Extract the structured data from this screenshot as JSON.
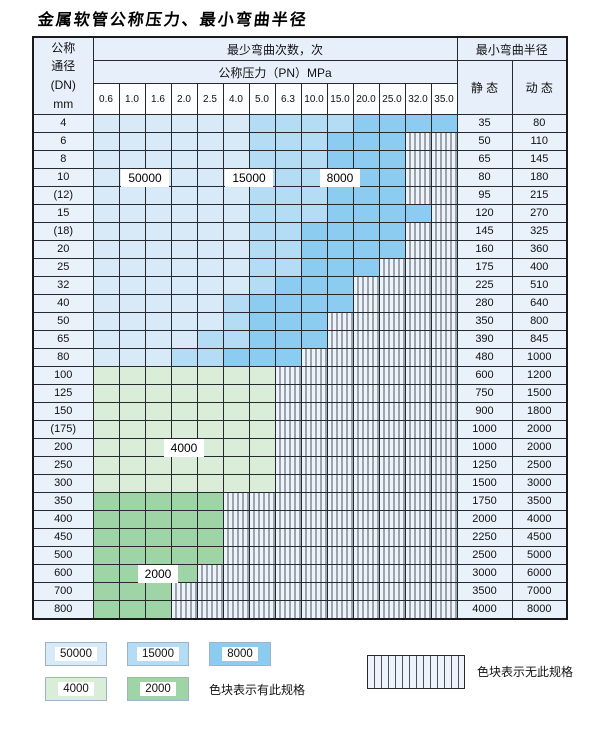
{
  "title": "金属软管公称压力、最小弯曲半径",
  "header": {
    "dn_lines": [
      "公称",
      "通径",
      "(DN)",
      "mm"
    ],
    "bend_times": "最少弯曲次数，次",
    "pressure_group": "公称压力（PN）MPa",
    "min_radius": "最小弯曲半径",
    "static": "静 态",
    "dynamic": "动 态",
    "pressure_columns": [
      "0.6",
      "1.0",
      "1.6",
      "2.0",
      "2.5",
      "4.0",
      "5.0",
      "6.3",
      "10.0",
      "15.0",
      "20.0",
      "25.0",
      "32.0",
      "35.0"
    ]
  },
  "colors": {
    "L": "#d8eaf8",
    "M": "#b4dcf4",
    "D": "#8cccf0",
    "g": "#d9edd8",
    "G": "#9ed4a6",
    "hatch_bg": "#eef3fb",
    "hatch_line": "#4a5560",
    "label_bg": "#e9f1fb",
    "grid": "#26292e"
  },
  "rows": [
    {
      "dn": "4",
      "cells": "LLLLLLMMMMDDDD",
      "static": "35",
      "dynamic": "80"
    },
    {
      "dn": "6",
      "cells": "LLLLLLMMMDDDxx",
      "static": "50",
      "dynamic": "110"
    },
    {
      "dn": "8",
      "cells": "LLLLLLMMMDDDxx",
      "static": "65",
      "dynamic": "145"
    },
    {
      "dn": "10",
      "cells": "LLLLLLMMMDDDxx",
      "static": "80",
      "dynamic": "180"
    },
    {
      "dn": "(12)",
      "cells": "LLLLLLMMMDDDxx",
      "static": "95",
      "dynamic": "215"
    },
    {
      "dn": "15",
      "cells": "LLLLLLMMMDDDDx",
      "static": "120",
      "dynamic": "270"
    },
    {
      "dn": "(18)",
      "cells": "LLLLLLMMDDDDxx",
      "static": "145",
      "dynamic": "325"
    },
    {
      "dn": "20",
      "cells": "LLLLLLMMDDDDxx",
      "static": "160",
      "dynamic": "360"
    },
    {
      "dn": "25",
      "cells": "LLLLLLMMDDDxxx",
      "static": "175",
      "dynamic": "400"
    },
    {
      "dn": "32",
      "cells": "LLLLLLMDDDxxxx",
      "static": "225",
      "dynamic": "510"
    },
    {
      "dn": "40",
      "cells": "LLLLLMDDDDxxxx",
      "static": "280",
      "dynamic": "640"
    },
    {
      "dn": "50",
      "cells": "LLLLLMDDDxxxxx",
      "static": "350",
      "dynamic": "800"
    },
    {
      "dn": "65",
      "cells": "LLLLMMDDDxxxxx",
      "static": "390",
      "dynamic": "845"
    },
    {
      "dn": "80",
      "cells": "LLLMMDDDxxxxxx",
      "static": "480",
      "dynamic": "1000"
    },
    {
      "dn": "100",
      "cells": "gggggggxxxxxxx",
      "static": "600",
      "dynamic": "1200"
    },
    {
      "dn": "125",
      "cells": "gggggggxxxxxxx",
      "static": "750",
      "dynamic": "1500"
    },
    {
      "dn": "150",
      "cells": "gggggggxxxxxxx",
      "static": "900",
      "dynamic": "1800"
    },
    {
      "dn": "(175)",
      "cells": "gggggggxxxxxxx",
      "static": "1000",
      "dynamic": "2000"
    },
    {
      "dn": "200",
      "cells": "gggggggxxxxxxx",
      "static": "1000",
      "dynamic": "2000"
    },
    {
      "dn": "250",
      "cells": "gggggggxxxxxxx",
      "static": "1250",
      "dynamic": "2500"
    },
    {
      "dn": "300",
      "cells": "gggggggxxxxxxx",
      "static": "1500",
      "dynamic": "3000"
    },
    {
      "dn": "350",
      "cells": "GGGGGxxxxxxxxx",
      "static": "1750",
      "dynamic": "3500"
    },
    {
      "dn": "400",
      "cells": "GGGGGxxxxxxxxx",
      "static": "2000",
      "dynamic": "4000"
    },
    {
      "dn": "450",
      "cells": "GGGGGxxxxxxxxx",
      "static": "2250",
      "dynamic": "4500"
    },
    {
      "dn": "500",
      "cells": "GGGGGxxxxxxxxx",
      "static": "2500",
      "dynamic": "5000"
    },
    {
      "dn": "600",
      "cells": "GGGGxxxxxxxxxx",
      "static": "3000",
      "dynamic": "6000"
    },
    {
      "dn": "700",
      "cells": "GGGxxxxxxxxxxx",
      "static": "3500",
      "dynamic": "7000"
    },
    {
      "dn": "800",
      "cells": "GGGxxxxxxxxxxx",
      "static": "4000",
      "dynamic": "8000"
    }
  ],
  "overlays": [
    {
      "text": "50000",
      "dn": "10",
      "col_start": 1,
      "col_end": 2
    },
    {
      "text": "15000",
      "dn": "10",
      "col_start": 5,
      "col_end": 6
    },
    {
      "text": "8000",
      "dn": "10",
      "col_start": 8,
      "col_end": 10
    },
    {
      "text": "4000",
      "dn": "200",
      "col_start": 2,
      "col_end": 4
    },
    {
      "text": "2000",
      "dn": "600",
      "col_start": 1,
      "col_end": 3
    }
  ],
  "legend": {
    "row1": [
      {
        "value": "50000",
        "color": "L"
      },
      {
        "value": "15000",
        "color": "M"
      },
      {
        "value": "8000",
        "color": "D"
      }
    ],
    "row2": [
      {
        "value": "4000",
        "color": "g"
      },
      {
        "value": "2000",
        "color": "G"
      }
    ],
    "has_spec": "色块表示有此规格",
    "no_spec": "色块表示无此规格"
  }
}
